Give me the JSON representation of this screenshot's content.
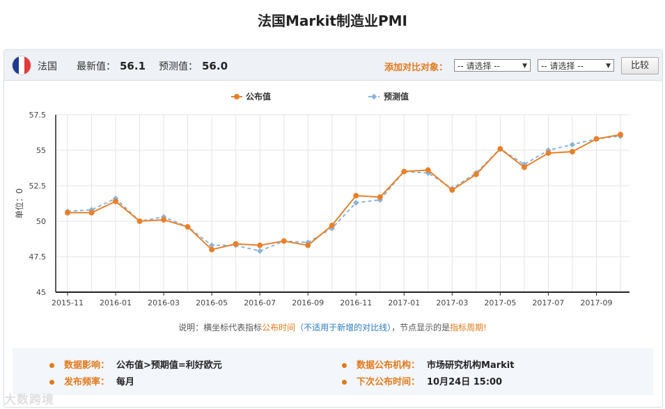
{
  "title": "法国Markit制造业PMI",
  "header": {
    "country": "法国",
    "latest_label": "最新值：",
    "latest_value": "56.1",
    "forecast_label": "预测值：",
    "forecast_value": "56.0",
    "add_compare_label": "添加对比对象：",
    "select1": "-- 请选择 --",
    "select2": "-- 请选择 --",
    "compare_button": "比较",
    "flag_colors": [
      "#1f3b8f",
      "#ffffff",
      "#e23a3a"
    ]
  },
  "chart_data": {
    "type": "line",
    "ylabel": "单位：0",
    "ylim": [
      45,
      57.5
    ],
    "yticks": [
      "45",
      "47.5",
      "50",
      "52.5",
      "55",
      "57.5"
    ],
    "xtick_labels": [
      "2015-11",
      "2016-01",
      "2016-03",
      "2016-05",
      "2016-07",
      "2016-09",
      "2016-11",
      "2017-01",
      "2017-03",
      "2017-05",
      "2017-07",
      "2017-09"
    ],
    "x": [
      "2015-11",
      "2015-12",
      "2016-01",
      "2016-02",
      "2016-03",
      "2016-04",
      "2016-05",
      "2016-06",
      "2016-07",
      "2016-08",
      "2016-09",
      "2016-10",
      "2016-11",
      "2016-12",
      "2017-01",
      "2017-02",
      "2017-03",
      "2017-04",
      "2017-05",
      "2017-06",
      "2017-07",
      "2017-08",
      "2017-09",
      "2017-10"
    ],
    "series": [
      {
        "name": "公布值",
        "color": "#e8802a",
        "style": "solid",
        "values": [
          50.6,
          50.6,
          51.4,
          50.0,
          50.1,
          49.6,
          48.0,
          48.4,
          48.3,
          48.6,
          48.3,
          49.7,
          51.8,
          51.7,
          53.5,
          53.6,
          52.2,
          53.3,
          55.1,
          53.8,
          54.8,
          54.9,
          55.8,
          56.1
        ]
      },
      {
        "name": "预测值",
        "color": "#8cb4d8",
        "style": "dashed",
        "values": [
          50.7,
          50.8,
          51.6,
          50.0,
          50.3,
          49.6,
          48.3,
          48.3,
          47.9,
          48.6,
          48.5,
          49.5,
          51.3,
          51.5,
          53.5,
          53.4,
          52.3,
          53.4,
          55.1,
          54.0,
          55.0,
          55.4,
          55.8,
          56.0
        ]
      }
    ]
  },
  "note": {
    "prefix": "说明：横坐标代表指标",
    "o1": "公布时间",
    "b1": "（不适用于新增的对比线）",
    "mid": "，节点显示的是",
    "o2": "指标周期!"
  },
  "info": {
    "impact_label": "数据影响：",
    "impact_value": "公布值>预期值=利好欧元",
    "agency_label": "数据公布机构：",
    "agency_value": "市场研究机构Markit",
    "freq_label": "发布频率：",
    "freq_value": "每月",
    "next_label": "下次公布时间：",
    "next_value": "10月24日 15:00"
  },
  "watermark": "大数跨境"
}
